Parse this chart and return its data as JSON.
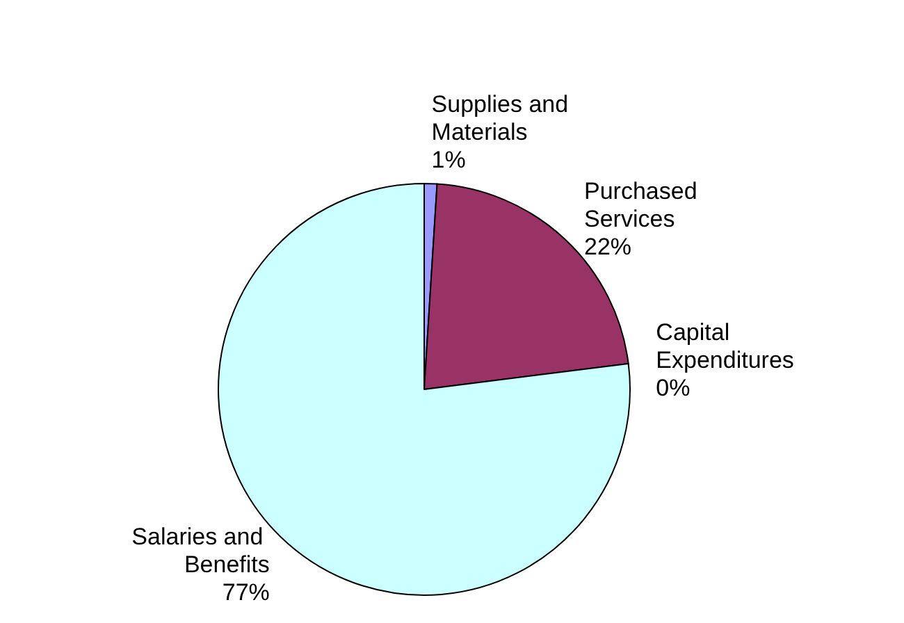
{
  "chart_data": {
    "type": "pie",
    "categories": [
      "Supplies and Materials",
      "Purchased Services",
      "Capital Expenditures",
      "Salaries and Benefits"
    ],
    "values": [
      1,
      22,
      0,
      77
    ],
    "value_labels": [
      "1%",
      "22%",
      "0%",
      "77%"
    ],
    "colors": [
      "#9999ff",
      "#993366",
      "#ffffcc",
      "#ccffff"
    ],
    "legend": false
  }
}
